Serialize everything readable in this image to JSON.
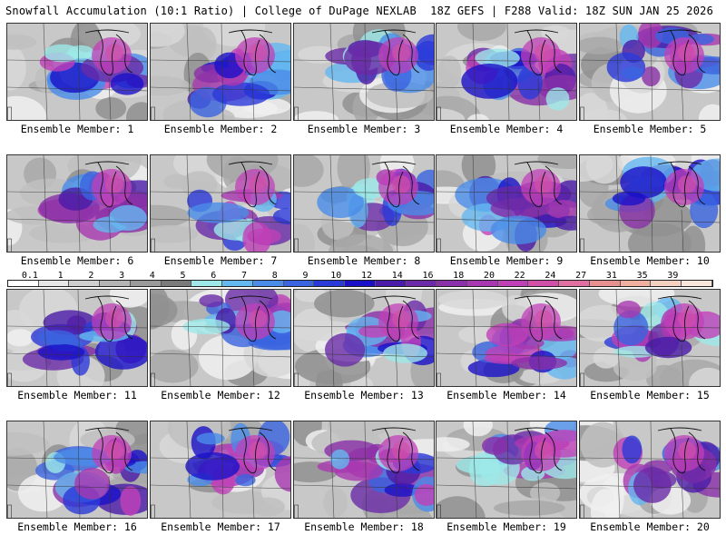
{
  "header": {
    "title": "Snowfall Accumulation (10:1 Ratio) | College of DuPage NEXLAB",
    "run_info": "18Z GEFS | F288 Valid: 18Z SUN JAN 25 2026"
  },
  "panels": [
    {
      "caption": "Ensemble Member: 1"
    },
    {
      "caption": "Ensemble Member: 2"
    },
    {
      "caption": "Ensemble Member: 3"
    },
    {
      "caption": "Ensemble Member: 4"
    },
    {
      "caption": "Ensemble Member: 5"
    },
    {
      "caption": "Ensemble Member: 6"
    },
    {
      "caption": "Ensemble Member: 7"
    },
    {
      "caption": "Ensemble Member: 8"
    },
    {
      "caption": "Ensemble Member: 9"
    },
    {
      "caption": "Ensemble Member: 10"
    },
    {
      "caption": "Ensemble Member: 11"
    },
    {
      "caption": "Ensemble Member: 12"
    },
    {
      "caption": "Ensemble Member: 13"
    },
    {
      "caption": "Ensemble Member: 14"
    },
    {
      "caption": "Ensemble Member: 15"
    },
    {
      "caption": "Ensemble Member: 16"
    },
    {
      "caption": "Ensemble Member: 17"
    },
    {
      "caption": "Ensemble Member: 18"
    },
    {
      "caption": "Ensemble Member: 19"
    },
    {
      "caption": "Ensemble Member: 20"
    }
  ],
  "legend": {
    "labels": [
      "0.1",
      "1",
      "2",
      "3",
      "4",
      "5",
      "6",
      "7",
      "8",
      "9",
      "10",
      "12",
      "14",
      "16",
      "18",
      "20",
      "22",
      "24",
      "27",
      "31",
      "35",
      "39"
    ],
    "colors": [
      "#ffffff",
      "#e6e6e6",
      "#cfcfcf",
      "#b4b4b4",
      "#9a9a9a",
      "#7a7a7a",
      "#9ee8e8",
      "#64b8f0",
      "#4a8ce8",
      "#3a64e0",
      "#2a3ad8",
      "#1a10c8",
      "#4a1aa8",
      "#6a2aa8",
      "#8a30a8",
      "#a838b0",
      "#c040b8",
      "#d050a8",
      "#e070a0",
      "#e89090",
      "#f0b0a0",
      "#f4d0c0",
      "#f8e6dc"
    ]
  }
}
